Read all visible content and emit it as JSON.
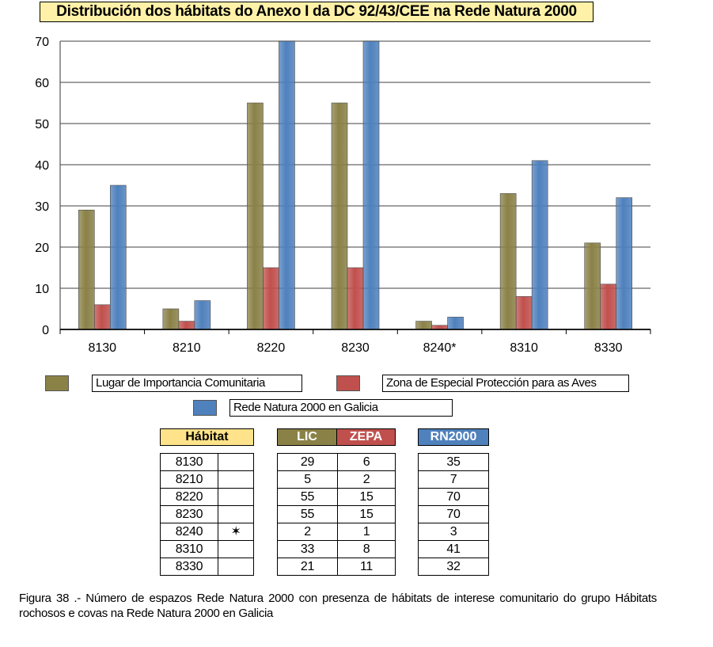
{
  "colors": {
    "lic": "#8a8147",
    "zepa": "#c0504d",
    "rn2000": "#4f81bd",
    "title_bg": "#fff2a8",
    "habitat_bg": "#ffe38a"
  },
  "chart_data": {
    "type": "bar",
    "title": "Distribución dos hábitats do Anexo I da DC 92/43/CEE na Rede Natura 2000",
    "categories": [
      "8130",
      "8210",
      "8220",
      "8230",
      "8240*",
      "8310",
      "8330"
    ],
    "series": [
      {
        "name": "Lugar de Importancia Comunitaria",
        "values": [
          29,
          5,
          55,
          55,
          2,
          33,
          21
        ]
      },
      {
        "name": "Zona de Especial Protección para as Aves",
        "values": [
          6,
          2,
          15,
          15,
          1,
          8,
          11
        ]
      },
      {
        "name": "Rede Natura 2000 en Galicia",
        "values": [
          35,
          7,
          70,
          70,
          3,
          41,
          32
        ]
      }
    ],
    "yticks": [
      "0",
      "10",
      "20",
      "30",
      "40",
      "50",
      "60",
      "70"
    ],
    "ylim": [
      0,
      70
    ],
    "grid": true,
    "legend_position": "bottom"
  },
  "table": {
    "habitat_header": "Hábitat",
    "lic_header": "LIC",
    "zepa_header": "ZEPA",
    "rn_header": "RN2000",
    "rows": [
      {
        "code": "8130",
        "mark": "",
        "lic": "29",
        "zepa": "6",
        "rn": "35"
      },
      {
        "code": "8210",
        "mark": "",
        "lic": "5",
        "zepa": "2",
        "rn": "7"
      },
      {
        "code": "8220",
        "mark": "",
        "lic": "55",
        "zepa": "15",
        "rn": "70"
      },
      {
        "code": "8230",
        "mark": "",
        "lic": "55",
        "zepa": "15",
        "rn": "70"
      },
      {
        "code": "8240",
        "mark": "✶",
        "lic": "2",
        "zepa": "1",
        "rn": "3"
      },
      {
        "code": "8310",
        "mark": "",
        "lic": "33",
        "zepa": "8",
        "rn": "41"
      },
      {
        "code": "8330",
        "mark": "",
        "lic": "21",
        "zepa": "11",
        "rn": "32"
      }
    ]
  },
  "caption": "Figura 38 .- Número de espazos Rede Natura 2000 con presenza de hábitats de interese comunitario do grupo Hábitats rochosos e covas na Rede Natura 2000 en Galicia"
}
